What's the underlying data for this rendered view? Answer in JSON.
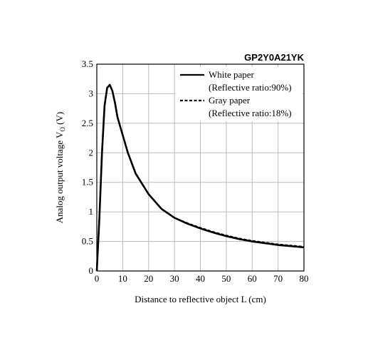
{
  "chart_data": {
    "type": "line",
    "title": "GP2Y0A21YK",
    "xlabel": "Distance to reflective object L (cm)",
    "ylabel_main": "Analog output voltage V",
    "ylabel_sub": "O",
    "ylabel_unit": " (V)",
    "xlim": [
      0,
      80
    ],
    "ylim": [
      0,
      3.5
    ],
    "x_ticks": [
      0,
      10,
      20,
      30,
      40,
      50,
      60,
      70,
      80
    ],
    "y_ticks": [
      0,
      0.5,
      1,
      1.5,
      2,
      2.5,
      3,
      3.5
    ],
    "x_tick_labels": [
      "0",
      "10",
      "20",
      "30",
      "40",
      "50",
      "60",
      "70",
      "80"
    ],
    "y_tick_labels": [
      "0",
      "0.5",
      "1",
      "1.5",
      "2",
      "2.5",
      "3",
      "3.5"
    ],
    "grid": true,
    "legend_position": "top-right",
    "series": [
      {
        "name": "White paper",
        "name_detail": "(Reflective ratio:90%)",
        "style": "solid",
        "x": [
          0,
          1,
          2,
          3,
          4,
          5,
          6,
          7,
          8,
          10,
          12,
          15,
          20,
          25,
          30,
          35,
          40,
          45,
          50,
          55,
          60,
          65,
          70,
          75,
          80
        ],
        "y": [
          0,
          0.9,
          2.0,
          2.8,
          3.1,
          3.15,
          3.05,
          2.85,
          2.6,
          2.3,
          2.0,
          1.65,
          1.3,
          1.05,
          0.9,
          0.8,
          0.72,
          0.65,
          0.59,
          0.54,
          0.5,
          0.47,
          0.44,
          0.42,
          0.4
        ]
      },
      {
        "name": "Gray paper",
        "name_detail": "(Reflective ratio:18%)",
        "style": "dashed",
        "x": [
          0,
          1,
          2,
          3,
          4,
          5,
          6,
          7,
          8,
          10,
          12,
          15,
          20,
          25,
          30,
          35,
          40,
          45,
          50,
          55,
          60,
          65,
          70,
          75,
          80
        ],
        "y": [
          0,
          0.9,
          2.0,
          2.8,
          3.1,
          3.15,
          3.05,
          2.85,
          2.6,
          2.3,
          2.0,
          1.65,
          1.3,
          1.05,
          0.9,
          0.81,
          0.73,
          0.66,
          0.6,
          0.55,
          0.51,
          0.48,
          0.45,
          0.43,
          0.41
        ]
      }
    ],
    "colors": {
      "series": "#000000",
      "grid": "#bdbdbd",
      "frame": "#000000"
    }
  }
}
